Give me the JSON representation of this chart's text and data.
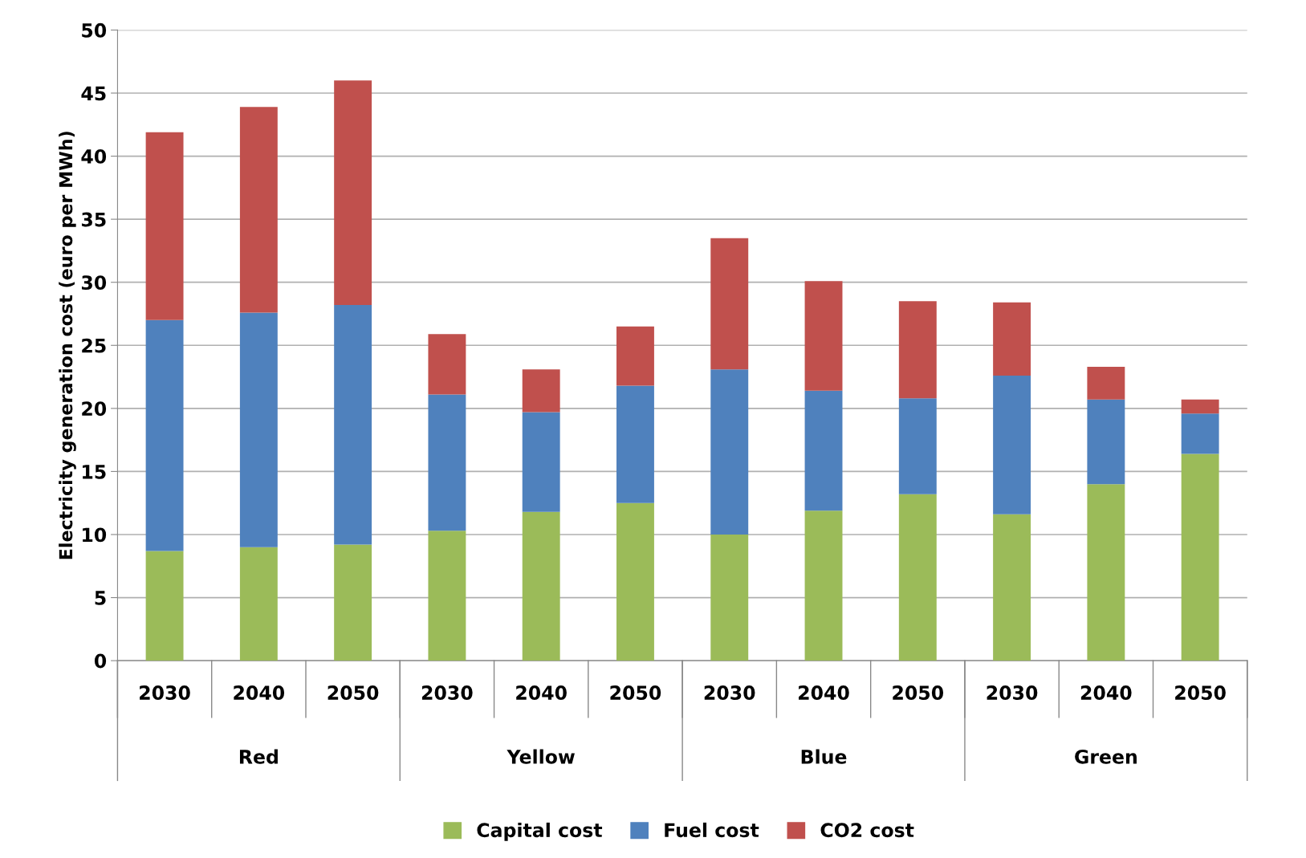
{
  "chart_data": {
    "type": "bar",
    "stacked": true,
    "ylabel": "Electricity generation cost (euro per MWh)",
    "categories": [
      "2030",
      "2040",
      "2050",
      "2030",
      "2040",
      "2050",
      "2030",
      "2040",
      "2050",
      "2030",
      "2040",
      "2050"
    ],
    "series": [
      {
        "name": "Capital cost",
        "color": "#9bbb59",
        "values": [
          8.7,
          9.0,
          9.2,
          10.3,
          11.8,
          12.5,
          10.0,
          11.9,
          13.2,
          11.6,
          14.0,
          16.4
        ]
      },
      {
        "name": "Fuel cost",
        "color": "#4f81bd",
        "values": [
          18.3,
          18.6,
          19.0,
          10.8,
          7.9,
          9.3,
          13.1,
          9.5,
          7.6,
          11.0,
          6.7,
          3.2
        ]
      },
      {
        "name": "CO2 cost",
        "color": "#c0504d",
        "values": [
          14.9,
          16.3,
          17.8,
          4.8,
          3.4,
          4.7,
          10.4,
          8.7,
          7.7,
          5.8,
          2.6,
          1.1
        ]
      }
    ],
    "annotations": [
      "Red",
      "Yellow",
      "Blue",
      "Green"
    ],
    "ylim": [
      0,
      50
    ],
    "yticks": [
      0,
      5,
      10,
      15,
      20,
      25,
      30,
      35,
      40,
      45,
      50
    ],
    "grid": "y",
    "legend": "bottom"
  }
}
